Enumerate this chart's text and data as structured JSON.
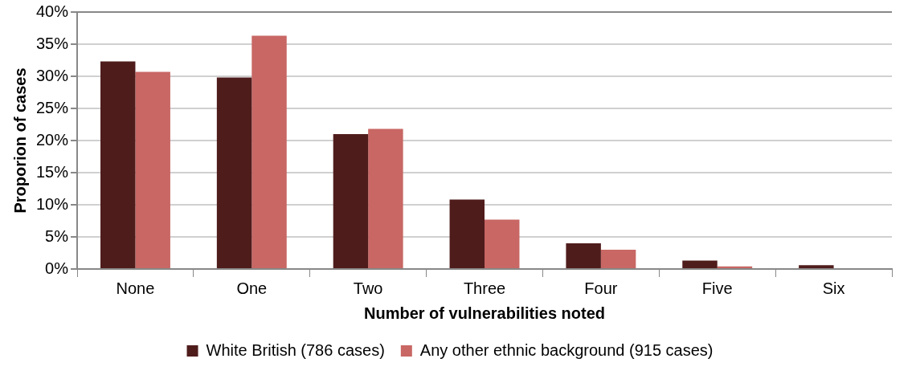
{
  "chart_data": {
    "type": "bar",
    "xlabel": "Number of vulnerabilities noted",
    "ylabel": "Proporion of cases",
    "categories": [
      "None",
      "One",
      "Two",
      "Three",
      "Four",
      "Five",
      "Six"
    ],
    "series": [
      {
        "name": "White British (786 cases)",
        "color": "#4f1c1c",
        "values": [
          32.3,
          29.8,
          21.0,
          10.8,
          4.0,
          1.3,
          0.6
        ]
      },
      {
        "name": "Any other ethnic background (915 cases)",
        "color": "#c86764",
        "values": [
          30.7,
          36.3,
          21.8,
          7.7,
          3.0,
          0.4,
          0
        ]
      }
    ],
    "ylim": [
      0,
      40
    ],
    "yticks": [
      {
        "value": 0,
        "label": "0%"
      },
      {
        "value": 5,
        "label": "5%"
      },
      {
        "value": 10,
        "label": "10%"
      },
      {
        "value": 15,
        "label": "15%"
      },
      {
        "value": 20,
        "label": "20%"
      },
      {
        "value": 25,
        "label": "25%"
      },
      {
        "value": 30,
        "label": "30%"
      },
      {
        "value": 35,
        "label": "35%"
      },
      {
        "value": 40,
        "label": "40%"
      }
    ],
    "grid": "y",
    "legend": "bottom"
  }
}
